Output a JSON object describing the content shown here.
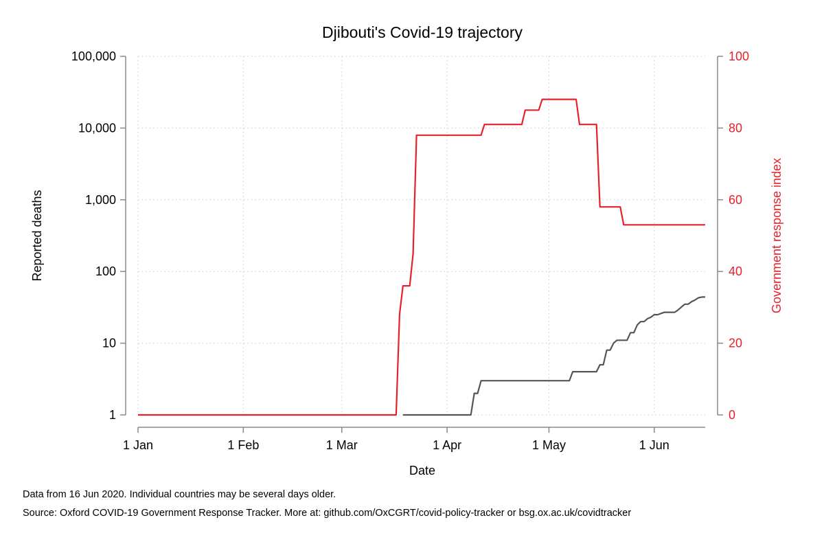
{
  "chart_data": {
    "type": "line",
    "title": "Djibouti's Covid-19 trajectory",
    "xlabel": "Date",
    "ylabel_left": "Reported deaths",
    "ylabel_right": "Government response index",
    "left_axis": {
      "scale": "log",
      "range": [
        1,
        100000
      ],
      "ticks": [
        1,
        10,
        100,
        1000,
        10000,
        100000
      ],
      "tick_labels": [
        "1",
        "10",
        "100",
        "1,000",
        "10,000",
        "100,000"
      ]
    },
    "right_axis": {
      "scale": "linear",
      "range": [
        0,
        100
      ],
      "ticks": [
        0,
        20,
        40,
        60,
        80,
        100
      ],
      "tick_labels": [
        "0",
        "20",
        "40",
        "60",
        "80",
        "100"
      ],
      "color": "#e8202a"
    },
    "x_axis": {
      "range": [
        "2020-01-01",
        "2020-06-16"
      ],
      "ticks": [
        "2020-01-01",
        "2020-02-01",
        "2020-03-01",
        "2020-04-01",
        "2020-05-01",
        "2020-06-01"
      ],
      "tick_labels": [
        "1 Jan",
        "1 Feb",
        "1 Mar",
        "1 Apr",
        "1 May",
        "1 Jun"
      ]
    },
    "grid": true,
    "series": [
      {
        "axis": "left",
        "color": "#555555",
        "points": [
          [
            "2020-03-19",
            1
          ],
          [
            "2020-04-08",
            1
          ],
          [
            "2020-04-09",
            2
          ],
          [
            "2020-04-10",
            2
          ],
          [
            "2020-04-11",
            3
          ],
          [
            "2020-05-07",
            3
          ],
          [
            "2020-05-08",
            4
          ],
          [
            "2020-05-15",
            4
          ],
          [
            "2020-05-16",
            5
          ],
          [
            "2020-05-17",
            5
          ],
          [
            "2020-05-18",
            8
          ],
          [
            "2020-05-19",
            8
          ],
          [
            "2020-05-20",
            10
          ],
          [
            "2020-05-21",
            11
          ],
          [
            "2020-05-24",
            11
          ],
          [
            "2020-05-25",
            14
          ],
          [
            "2020-05-26",
            14
          ],
          [
            "2020-05-27",
            18
          ],
          [
            "2020-05-28",
            20
          ],
          [
            "2020-05-29",
            20
          ],
          [
            "2020-05-30",
            22
          ],
          [
            "2020-05-31",
            23
          ],
          [
            "2020-06-01",
            25
          ],
          [
            "2020-06-02",
            25
          ],
          [
            "2020-06-03",
            26
          ],
          [
            "2020-06-04",
            27
          ],
          [
            "2020-06-07",
            27
          ],
          [
            "2020-06-08",
            29
          ],
          [
            "2020-06-09",
            32
          ],
          [
            "2020-06-10",
            35
          ],
          [
            "2020-06-11",
            35
          ],
          [
            "2020-06-12",
            38
          ],
          [
            "2020-06-13",
            40
          ],
          [
            "2020-06-14",
            43
          ],
          [
            "2020-06-15",
            44
          ],
          [
            "2020-06-16",
            44
          ]
        ]
      },
      {
        "axis": "right",
        "color": "#e8202a",
        "points": [
          [
            "2020-01-01",
            0
          ],
          [
            "2020-03-17",
            0
          ],
          [
            "2020-03-18",
            28
          ],
          [
            "2020-03-19",
            36
          ],
          [
            "2020-03-20",
            36
          ],
          [
            "2020-03-21",
            36
          ],
          [
            "2020-03-22",
            45
          ],
          [
            "2020-03-23",
            78
          ],
          [
            "2020-04-11",
            78
          ],
          [
            "2020-04-12",
            81
          ],
          [
            "2020-04-23",
            81
          ],
          [
            "2020-04-24",
            85
          ],
          [
            "2020-04-28",
            85
          ],
          [
            "2020-04-29",
            88
          ],
          [
            "2020-05-09",
            88
          ],
          [
            "2020-05-10",
            81
          ],
          [
            "2020-05-15",
            81
          ],
          [
            "2020-05-16",
            58
          ],
          [
            "2020-05-22",
            58
          ],
          [
            "2020-05-23",
            53
          ],
          [
            "2020-06-16",
            53
          ]
        ]
      }
    ]
  },
  "notes": {
    "line1": "Data from 16 Jun 2020. Individual countries may be several days older.",
    "line2": "Source: Oxford COVID-19 Government Response Tracker. More at: github.com/OxCGRT/covid-policy-tracker or bsg.ox.ac.uk/covidtracker"
  }
}
